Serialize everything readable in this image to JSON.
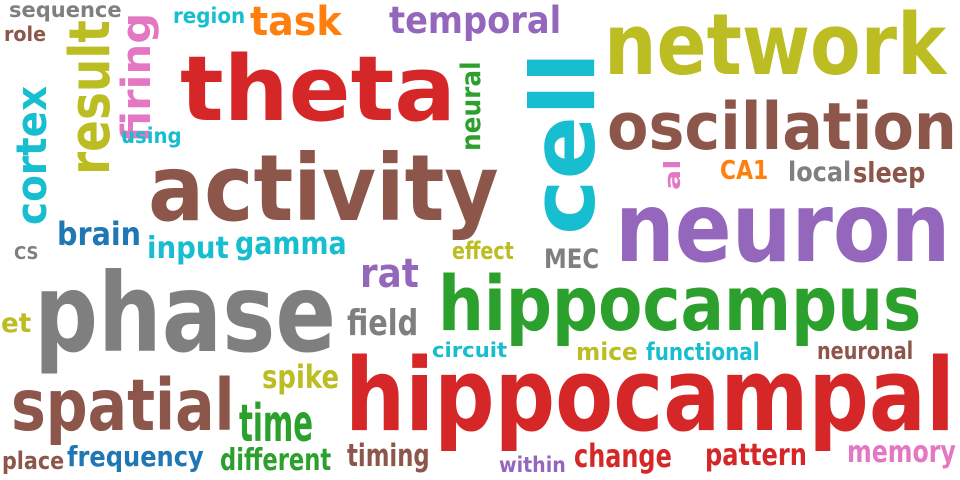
{
  "words": [
    {
      "text": "sequence",
      "color": "#7f7f7f"
    },
    {
      "text": "role",
      "color": "#8c564b"
    },
    {
      "text": "region",
      "color": "#17becf"
    },
    {
      "text": "task",
      "color": "#ff7f0e"
    },
    {
      "text": "temporal",
      "color": "#9467bd"
    },
    {
      "text": "network",
      "color": "#bcbd22"
    },
    {
      "text": "theta",
      "color": "#d62728"
    },
    {
      "text": "result",
      "color": "#bcbd22"
    },
    {
      "text": "firing",
      "color": "#e377c2"
    },
    {
      "text": "cortex",
      "color": "#17becf"
    },
    {
      "text": "using",
      "color": "#17becf"
    },
    {
      "text": "neural",
      "color": "#2ca02c"
    },
    {
      "text": "cell",
      "color": "#17becf"
    },
    {
      "text": "oscillation",
      "color": "#8c564b"
    },
    {
      "text": "activity",
      "color": "#8c564b"
    },
    {
      "text": "al",
      "color": "#e377c2"
    },
    {
      "text": "CA1",
      "color": "#ff7f0e"
    },
    {
      "text": "local",
      "color": "#7f7f7f"
    },
    {
      "text": "sleep",
      "color": "#8c564b"
    },
    {
      "text": "neuron",
      "color": "#9467bd"
    },
    {
      "text": "brain",
      "color": "#1f77b4"
    },
    {
      "text": "input",
      "color": "#17becf"
    },
    {
      "text": "gamma",
      "color": "#17becf"
    },
    {
      "text": "effect",
      "color": "#bcbd22"
    },
    {
      "text": "CS",
      "color": "#7f7f7f"
    },
    {
      "text": "MEC",
      "color": "#7f7f7f"
    },
    {
      "text": "rat",
      "color": "#9467bd"
    },
    {
      "text": "phase",
      "color": "#7f7f7f"
    },
    {
      "text": "hippocampus",
      "color": "#2ca02c"
    },
    {
      "text": "et",
      "color": "#bcbd22"
    },
    {
      "text": "field",
      "color": "#7f7f7f"
    },
    {
      "text": "circuit",
      "color": "#17becf"
    },
    {
      "text": "mice",
      "color": "#bcbd22"
    },
    {
      "text": "functional",
      "color": "#17becf"
    },
    {
      "text": "neuronal",
      "color": "#8c564b"
    },
    {
      "text": "spike",
      "color": "#bcbd22"
    },
    {
      "text": "hippocampal",
      "color": "#d62728"
    },
    {
      "text": "spatial",
      "color": "#8c564b"
    },
    {
      "text": "time",
      "color": "#2ca02c"
    },
    {
      "text": "place",
      "color": "#8c564b"
    },
    {
      "text": "frequency",
      "color": "#1f77b4"
    },
    {
      "text": "different",
      "color": "#2ca02c"
    },
    {
      "text": "timing",
      "color": "#8c564b"
    },
    {
      "text": "within",
      "color": "#9467bd"
    },
    {
      "text": "change",
      "color": "#d62728"
    },
    {
      "text": "pattern",
      "color": "#d62728"
    },
    {
      "text": "memory",
      "color": "#e377c2"
    }
  ]
}
